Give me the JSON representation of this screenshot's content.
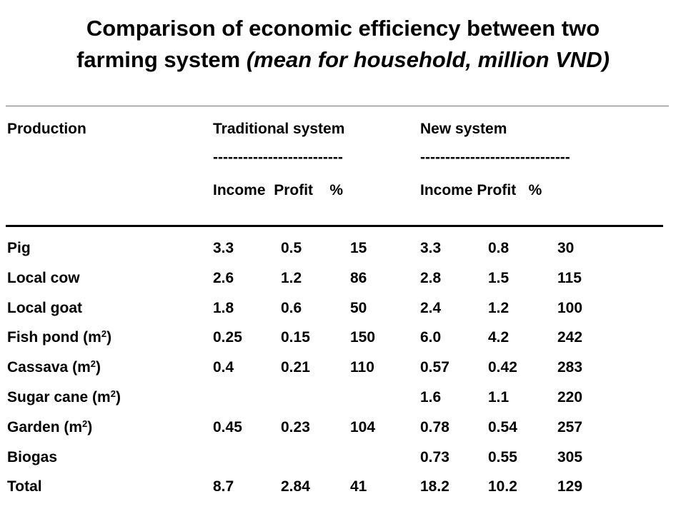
{
  "title": {
    "line1": "Comparison of economic efficiency between two",
    "line2_plain": "farming system ",
    "line2_italic": "(mean for household, million VND)"
  },
  "header": {
    "production": "Production",
    "traditional": "Traditional system",
    "new": "New system",
    "traditional_dashes": "--------------------------",
    "new_dashes": "------------------------------",
    "traditional_sub": "Income  Profit    %",
    "new_sub": "Income Profit   %"
  },
  "rows": [
    {
      "name": "Pig",
      "sup": "",
      "name_suffix": "",
      "t_income": "3.3",
      "t_profit": "0.5",
      "t_pct": "15",
      "n_income": "3.3",
      "n_profit": "0.8",
      "n_pct": "30"
    },
    {
      "name": "Local cow",
      "sup": "",
      "name_suffix": "",
      "t_income": "2.6",
      "t_profit": "1.2",
      "t_pct": "86",
      "n_income": "2.8",
      "n_profit": "1.5",
      "n_pct": "115"
    },
    {
      "name": "Local goat",
      "sup": "",
      "name_suffix": "",
      "t_income": "1.8",
      "t_profit": "0.6",
      "t_pct": "50",
      "n_income": "2.4",
      "n_profit": "1.2",
      "n_pct": "100"
    },
    {
      "name": "Fish pond (m",
      "sup": "2",
      "name_suffix": ")",
      "t_income": "0.25",
      "t_profit": "0.15",
      "t_pct": "150",
      "n_income": "6.0",
      "n_profit": "4.2",
      "n_pct": "242"
    },
    {
      "name": "Cassava (m",
      "sup": "2",
      "name_suffix": ")",
      "t_income": "0.4",
      "t_profit": "0.21",
      "t_pct": "110",
      "n_income": "0.57",
      "n_profit": "0.42",
      "n_pct": "283"
    },
    {
      "name": "Sugar cane (m",
      "sup": "2",
      "name_suffix": ")",
      "t_income": "",
      "t_profit": "",
      "t_pct": "",
      "n_income": "1.6",
      "n_profit": "1.1",
      "n_pct": "220"
    },
    {
      "name": "Garden (m",
      "sup": "2",
      "name_suffix": ")",
      "t_income": "0.45",
      "t_profit": "0.23",
      "t_pct": "104",
      "n_income": "0.78",
      "n_profit": "0.54",
      "n_pct": "257"
    },
    {
      "name": "Biogas",
      "sup": "",
      "name_suffix": "",
      "t_income": "",
      "t_profit": "",
      "t_pct": "",
      "n_income": "0.73",
      "n_profit": "0.55",
      "n_pct": "305"
    },
    {
      "name": "Total",
      "sup": "",
      "name_suffix": "",
      "t_income": "8.7",
      "t_profit": "2.84",
      "t_pct": "41",
      "n_income": "18.2",
      "n_profit": "10.2",
      "n_pct": "129"
    }
  ]
}
